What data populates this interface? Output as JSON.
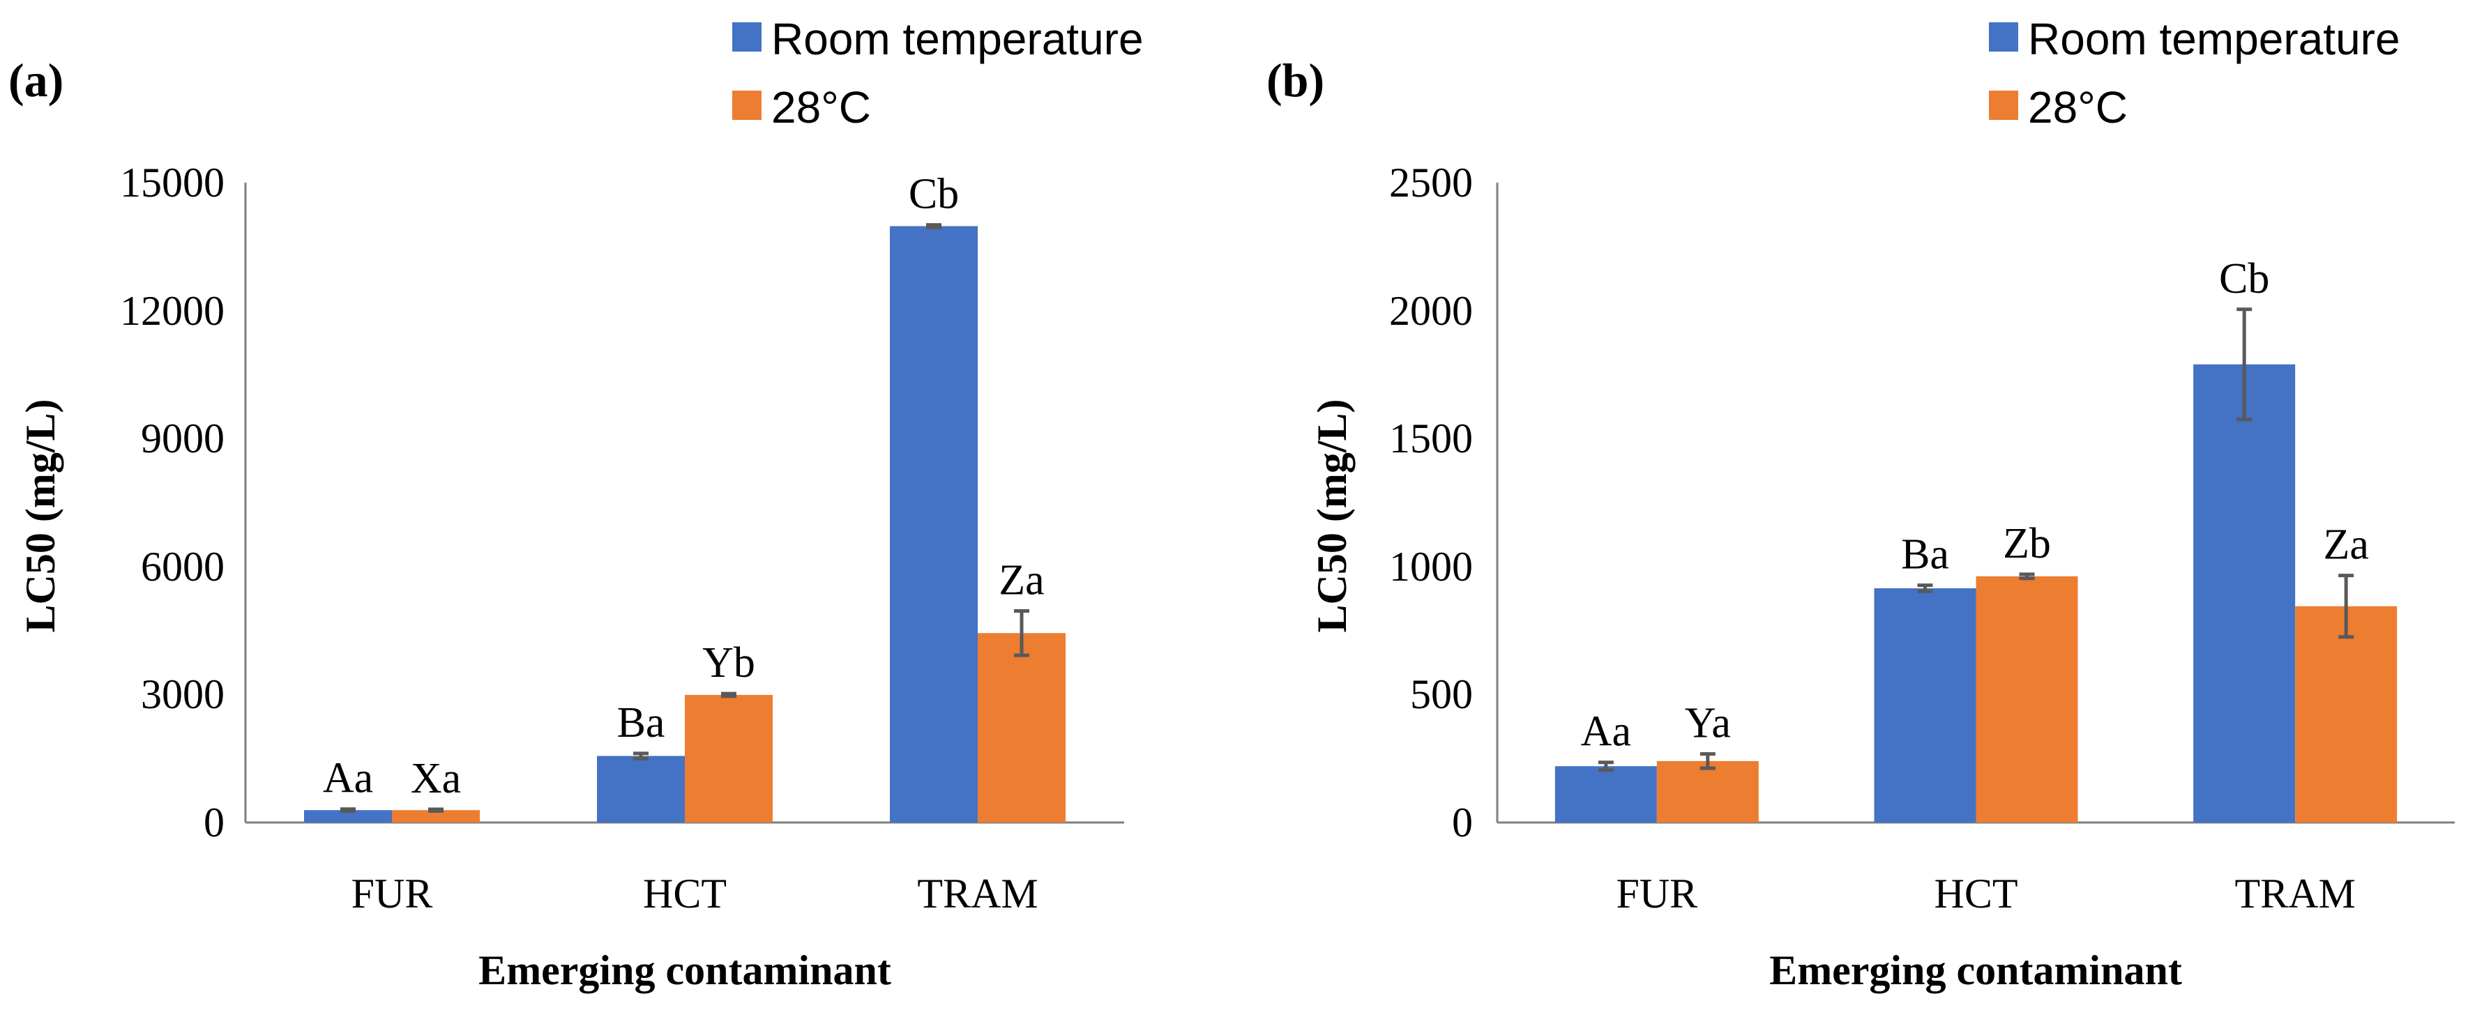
{
  "chart_data": [
    {
      "type": "bar",
      "panel_label": "(a)",
      "categories": [
        "FUR",
        "HCT",
        "TRAM"
      ],
      "series": [
        {
          "name": "Room temperature",
          "color": "#4472C4",
          "values": [
            290,
            1560,
            13980
          ],
          "errors": [
            25,
            60,
            30
          ],
          "labels": [
            "Aa",
            "Ba",
            "Cb"
          ]
        },
        {
          "name": "28°C",
          "color": "#ED7D31",
          "values": [
            290,
            2990,
            4440
          ],
          "errors": [
            20,
            30,
            520
          ],
          "labels": [
            "Xa",
            "Yb",
            "Za"
          ]
        }
      ],
      "xlabel": "Emerging contaminant",
      "ylabel": "LC50 (mg/L)",
      "ylim": [
        0,
        15000
      ],
      "yticks": [
        0,
        3000,
        6000,
        9000,
        12000,
        15000
      ],
      "yticklabels": [
        "0",
        "3000",
        "6000",
        "9000",
        "12000",
        "15000"
      ],
      "grid": false,
      "legend_position": "top-right"
    },
    {
      "type": "bar",
      "panel_label": "(b)",
      "categories": [
        "FUR",
        "HCT",
        "TRAM"
      ],
      "series": [
        {
          "name": "Room temperature",
          "color": "#4472C4",
          "values": [
            220,
            915,
            1790
          ],
          "errors": [
            15,
            12,
            215
          ],
          "labels": [
            "Aa",
            "Ba",
            "Cb"
          ]
        },
        {
          "name": "28°C",
          "color": "#ED7D31",
          "values": [
            240,
            962,
            845
          ],
          "errors": [
            28,
            8,
            120
          ],
          "labels": [
            "Ya",
            "Zb",
            "Za"
          ]
        }
      ],
      "xlabel": "Emerging contaminant",
      "ylabel": "LC50 (mg/L)",
      "ylim": [
        0,
        2500
      ],
      "yticks": [
        0,
        500,
        1000,
        1500,
        2000,
        2500
      ],
      "yticklabels": [
        "0",
        "500",
        "1000",
        "1500",
        "2000",
        "2500"
      ],
      "grid": false,
      "legend_position": "top-right"
    }
  ]
}
